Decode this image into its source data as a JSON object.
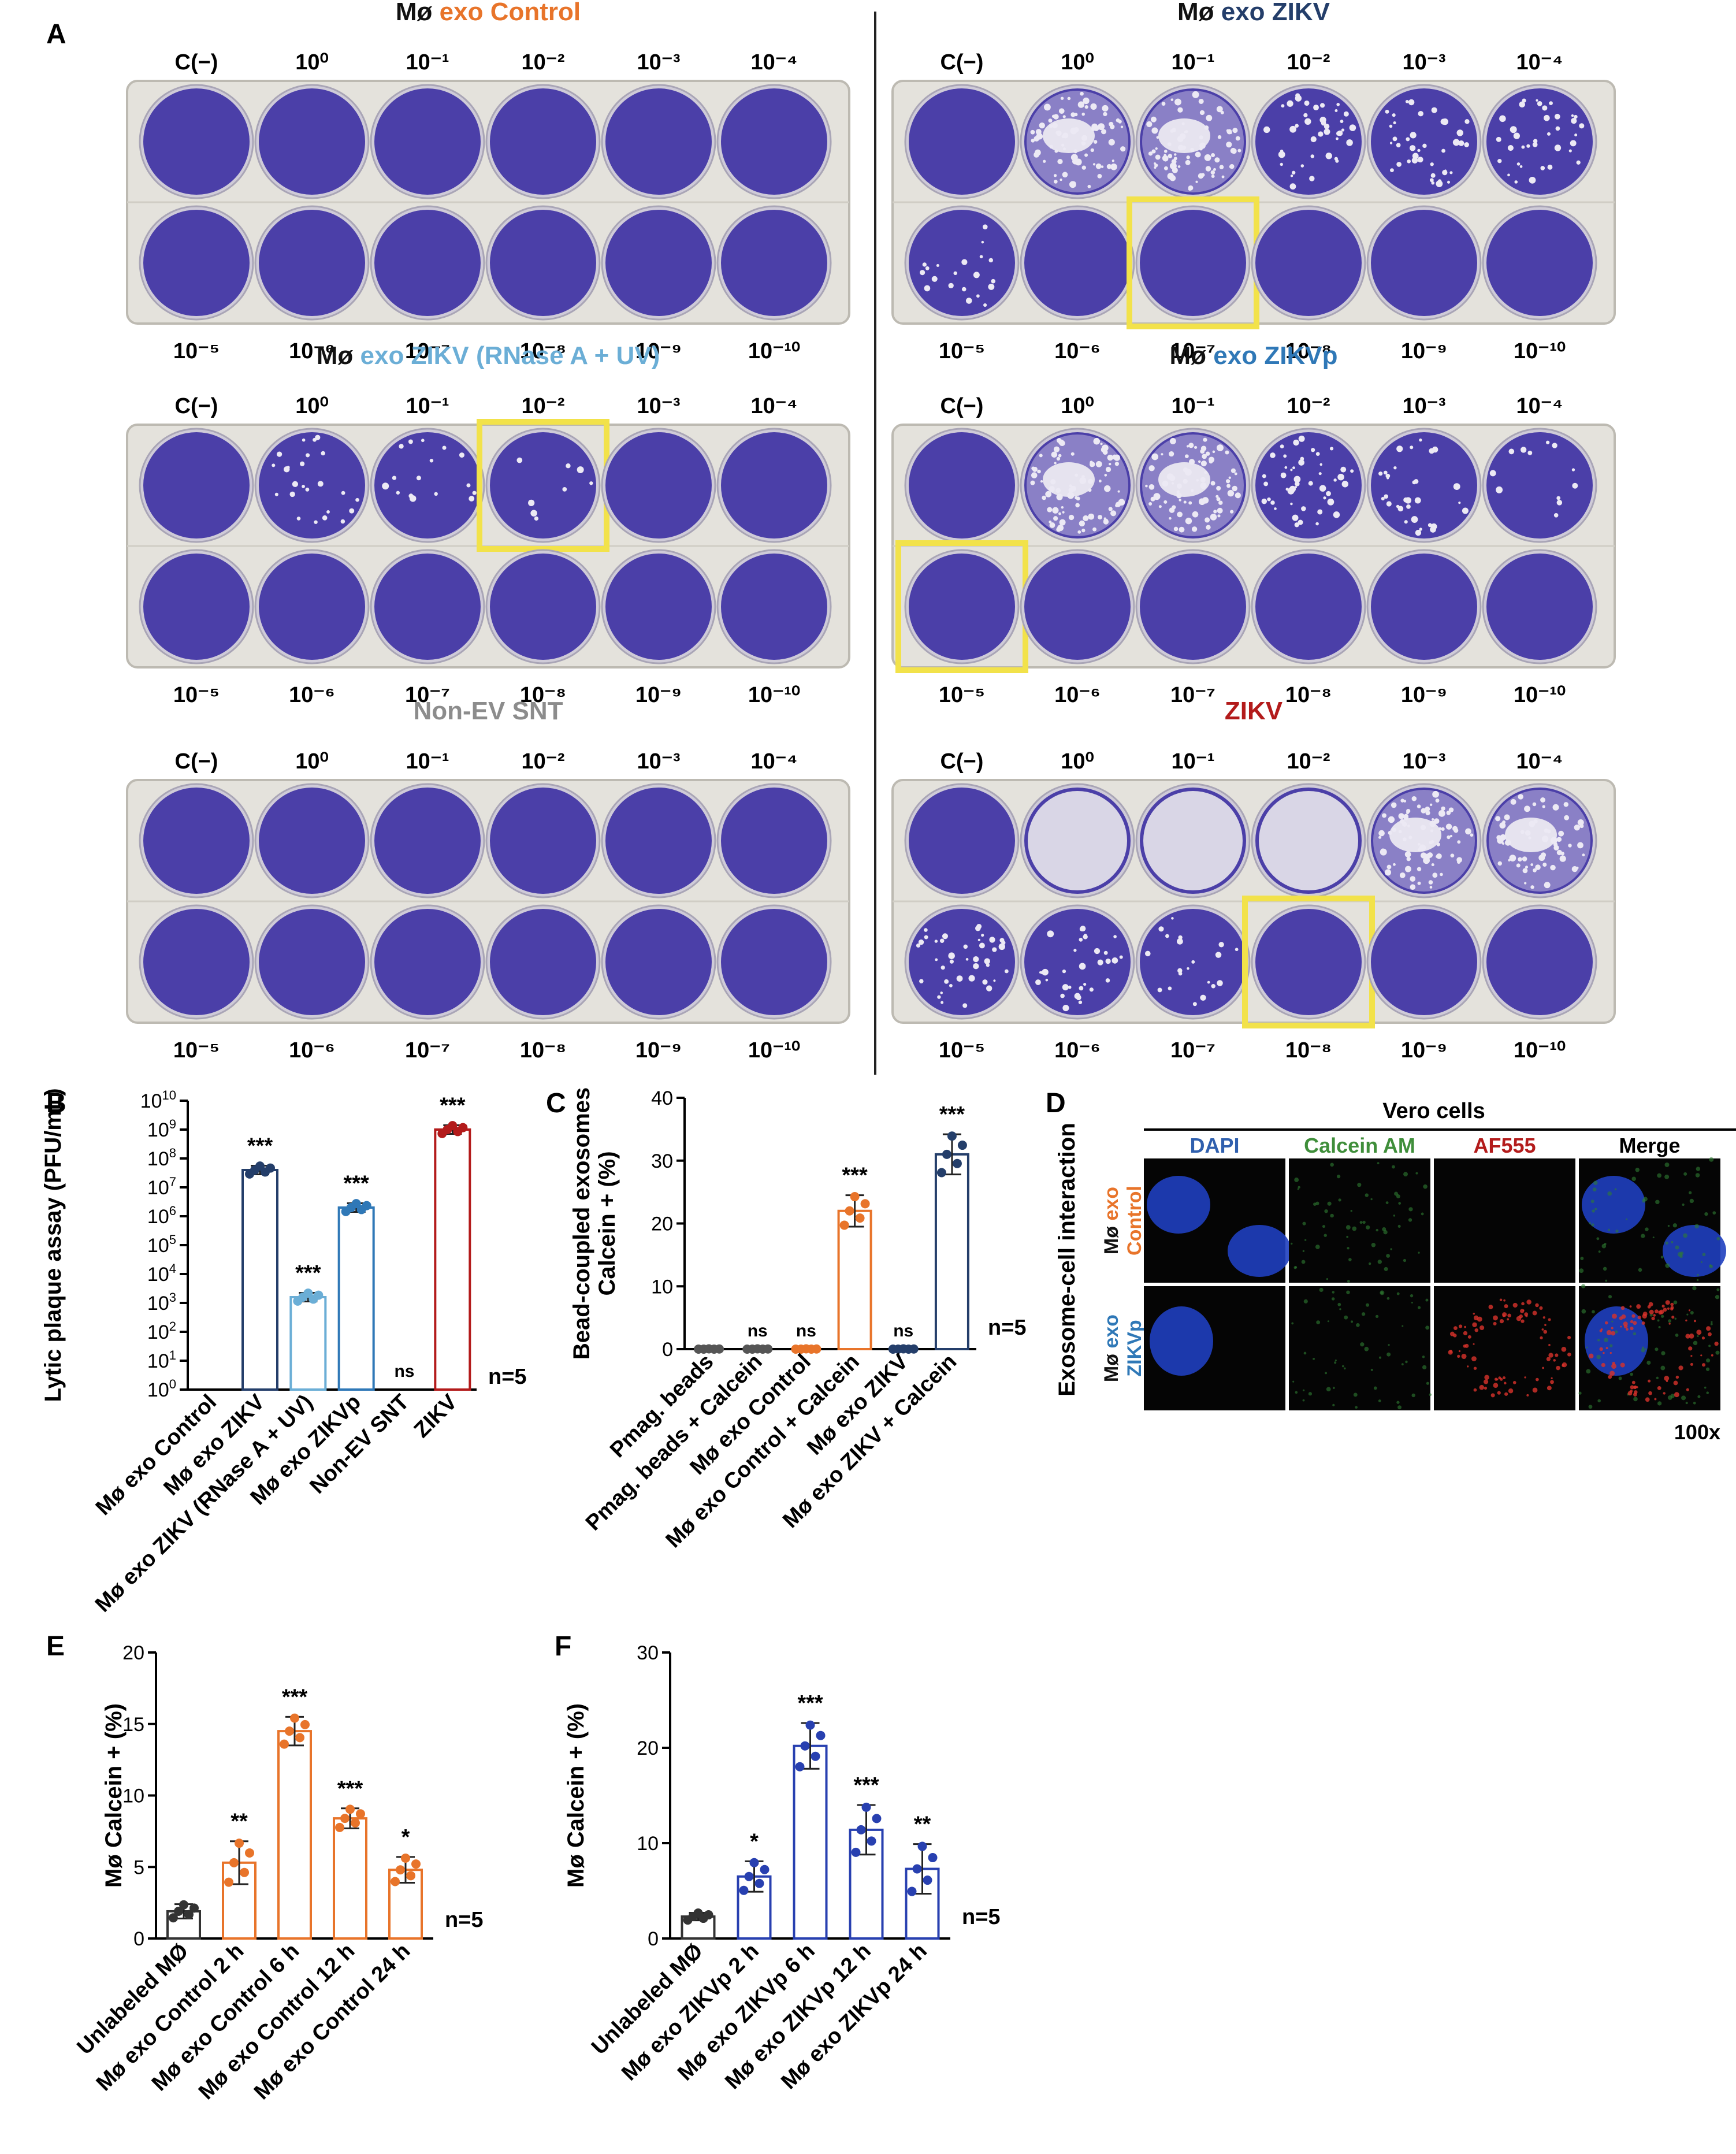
{
  "panel_letters": {
    "a": "A",
    "b": "B",
    "c": "C",
    "d": "D",
    "e": "E",
    "f": "F"
  },
  "colors": {
    "control_orange": "#e8742a",
    "zikv_navy": "#243e6a",
    "rnase_blue": "#6baed6",
    "zikvp_blue": "#2f78b7",
    "nonev_gray": "#8c8c8c",
    "zikv_red": "#b31b1b",
    "crystal_violet": "#4b3fa8",
    "highlight_yellow": "#f2e24a"
  },
  "plates": {
    "column_labels": [
      "C(−)",
      "10⁰",
      "10⁻¹",
      "10⁻²",
      "10⁻³",
      "10⁻⁴"
    ],
    "row2_labels": [
      "10⁻⁵",
      "10⁻⁶",
      "10⁻⁷",
      "10⁻⁸",
      "10⁻⁹",
      "10⁻¹⁰"
    ],
    "items": [
      {
        "prefix": "Mø ",
        "name": "exo Control",
        "color": "#e8742a",
        "highlight": -1
      },
      {
        "prefix": "Mø ",
        "name": "exo ZIKV",
        "color": "#243e6a",
        "highlight": 8
      },
      {
        "prefix": "Mø ",
        "name": "exo ZIKV (RNase A + UV)",
        "color": "#6baed6",
        "highlight": 3
      },
      {
        "prefix": "Mø ",
        "name": "exo ZIKVp",
        "color": "#2f78b7",
        "highlight": 6
      },
      {
        "prefix": "",
        "name": "Non-EV SNT",
        "color": "#8c8c8c",
        "highlight": -1
      },
      {
        "prefix": "",
        "name": "ZIKV",
        "color": "#b31b1b",
        "highlight": 9
      }
    ]
  },
  "chart_data": [
    {
      "id": "B",
      "type": "bar",
      "scale": "log10",
      "ylabel": "Lytic plaque assay (PFU/mL)",
      "ylim": [
        0,
        10
      ],
      "tick_exponents": [
        0,
        1,
        2,
        3,
        4,
        5,
        6,
        7,
        8,
        9,
        10
      ],
      "tick_base": "10",
      "categories": [
        "Mø exo Control",
        "Mø exo ZIKV",
        "Mø exo ZIKV (RNase A + UV)",
        "Mø exo ZIKVp",
        "Non-EV SNT",
        "ZIKV"
      ],
      "log10_values": [
        0,
        7.6,
        3.2,
        6.3,
        0,
        9.0
      ],
      "bar_colors": [
        "#e8742a",
        "#243e6a",
        "#6baed6",
        "#2f78b7",
        "#8c8c8c",
        "#b31b1b"
      ],
      "significance": [
        "",
        "***",
        "***",
        "***",
        "ns",
        "***"
      ],
      "n_label": "n=5"
    },
    {
      "id": "C",
      "type": "bar",
      "ylabel": "Bead-coupled exosomes\nCalcein + (%)",
      "ylim": [
        0,
        40
      ],
      "yticks": [
        0,
        10,
        20,
        30,
        40
      ],
      "categories": [
        "Pmag. beads",
        "Pmag. beads + Calcein",
        "Mø exo Control",
        "Mø exo Control + Calcein",
        "Mø exo ZIKV",
        "Mø exo ZIKV + Calcein"
      ],
      "values": [
        0,
        0,
        0,
        22,
        0,
        31
      ],
      "errors": [
        0,
        0,
        0,
        2.5,
        0,
        3.2
      ],
      "bar_colors": [
        "#555555",
        "#555555",
        "#e8742a",
        "#e8742a",
        "#243e6a",
        "#243e6a"
      ],
      "significance": [
        "",
        "ns",
        "ns",
        "***",
        "ns",
        "***"
      ],
      "n_label": "n=5"
    },
    {
      "id": "E",
      "type": "bar",
      "ylabel": "Mø Calcein + (%)",
      "ylim": [
        0,
        20
      ],
      "yticks": [
        0,
        5,
        10,
        15,
        20
      ],
      "categories": [
        "Unlabeled MØ",
        "Mø exo Control 2 h",
        "Mø exo Control 6 h",
        "Mø exo Control 12 h",
        "Mø exo Control 24 h"
      ],
      "values": [
        1.9,
        5.3,
        14.5,
        8.4,
        4.8
      ],
      "errors": [
        0.5,
        1.5,
        1.0,
        0.7,
        0.9
      ],
      "bar_colors": [
        "#333333",
        "#e8742a",
        "#e8742a",
        "#e8742a",
        "#e8742a"
      ],
      "significance": [
        "",
        "**",
        "***",
        "***",
        "*"
      ],
      "n_label": "n=5"
    },
    {
      "id": "F",
      "type": "bar",
      "ylabel": "Mø Calcein + (%)",
      "ylim": [
        0,
        30
      ],
      "yticks": [
        0,
        10,
        20,
        30
      ],
      "categories": [
        "Unlabeled MØ",
        "Mø exo ZIKVp 2 h",
        "Mø exo ZIKVp 6 h",
        "Mø exo ZIKVp 12 h",
        "Mø exo ZIKVp 24 h"
      ],
      "values": [
        2.3,
        6.5,
        20.2,
        11.4,
        7.3
      ],
      "errors": [
        0.4,
        1.6,
        2.4,
        2.6,
        2.6
      ],
      "bar_colors": [
        "#333333",
        "#2840b0",
        "#2840b0",
        "#2840b0",
        "#2840b0"
      ],
      "significance": [
        "",
        "*",
        "***",
        "***",
        "**"
      ],
      "n_label": "n=5"
    }
  ],
  "microscopy": {
    "vertical_title": "Exosome-cell interaction",
    "group_title": "Vero cells",
    "channels": [
      {
        "label": "DAPI",
        "color": "#2f5fae"
      },
      {
        "label": "Calcein AM",
        "color": "#3f8e3a"
      },
      {
        "label": "AF555",
        "color": "#b31b1b"
      },
      {
        "label": "Merge",
        "color": "#000000"
      }
    ],
    "rows": [
      {
        "prefix": "Mø ",
        "name": "exo",
        "suffix": "Control",
        "color": "#e8742a"
      },
      {
        "prefix": "Mø ",
        "name": "exo",
        "suffix": "ZIKVp",
        "color": "#2f78b7"
      }
    ],
    "magnification": "100x"
  }
}
